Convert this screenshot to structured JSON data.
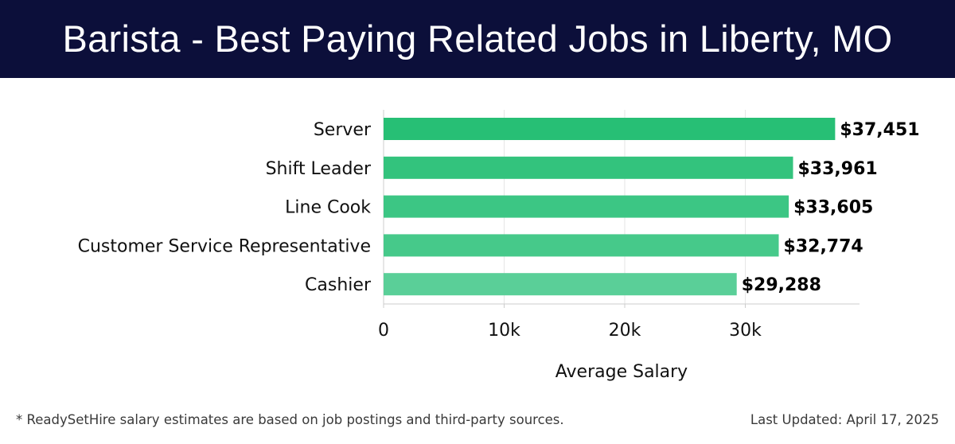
{
  "header": {
    "title": "Barista - Best Paying Related Jobs in Liberty, MO"
  },
  "chart_data": {
    "type": "bar",
    "orientation": "horizontal",
    "categories": [
      "Server",
      "Shift Leader",
      "Line Cook",
      "Customer Service Representative",
      "Cashier"
    ],
    "values": [
      37451,
      33961,
      33605,
      32774,
      29288
    ],
    "data_labels": [
      "$37,451",
      "$33,961",
      "$33,605",
      "$32,774",
      "$29,288"
    ],
    "xlabel": "Average Salary",
    "ylabel": "",
    "xlim": [
      0,
      39500
    ],
    "x_ticks": [
      0,
      10000,
      20000,
      30000
    ],
    "x_tick_labels": [
      "0",
      "10k",
      "20k",
      "30k"
    ],
    "grid": "vertical",
    "colors": {
      "bars": [
        "#27bf75",
        "#33c37d",
        "#3cc684",
        "#46c98a",
        "#5acf98"
      ],
      "grid": "#e6e6e6",
      "axis": "#cccccc"
    }
  },
  "footer": {
    "note": "* ReadySetHire salary estimates are based on job postings and third-party sources.",
    "updated": "Last Updated: April 17, 2025"
  }
}
